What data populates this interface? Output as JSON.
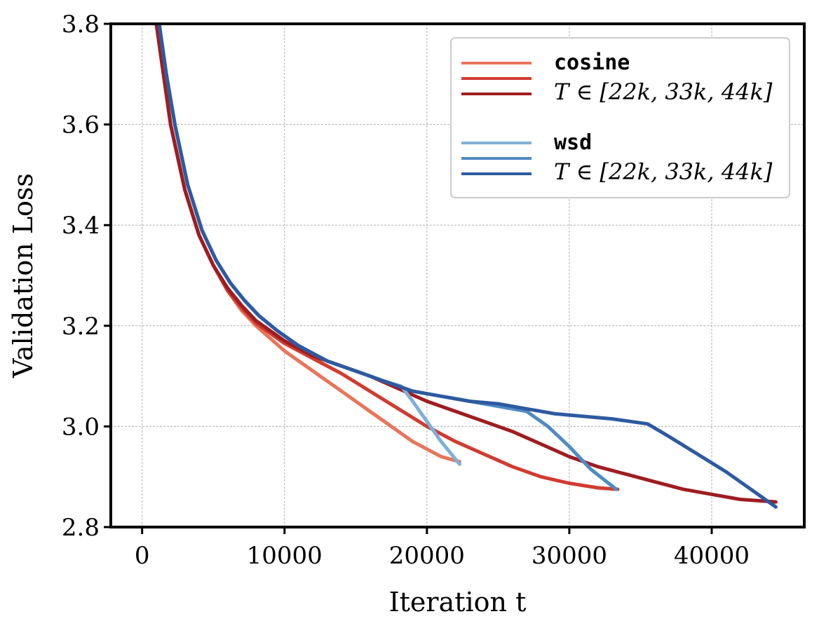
{
  "chart_data": {
    "type": "line",
    "title": "",
    "xlabel": "Iteration t",
    "ylabel": "Validation Loss",
    "xlim": [
      -2200,
      46500
    ],
    "ylim": [
      2.8,
      3.8
    ],
    "xticks": [
      0,
      10000,
      20000,
      30000,
      40000
    ],
    "yticks": [
      2.8,
      3.0,
      3.2,
      3.4,
      3.6,
      3.8
    ],
    "xtick_labels": [
      "0",
      "10000",
      "20000",
      "30000",
      "40000"
    ],
    "ytick_labels": [
      "2.8",
      "3.0",
      "3.2",
      "3.4",
      "3.6",
      "3.8"
    ],
    "grid": true,
    "legend": {
      "placement": "top-right",
      "groups": [
        {
          "name": "cosine",
          "subtitle": "T ∈ [22k, 33k, 44k]"
        },
        {
          "name": "wsd",
          "subtitle": "T ∈ [22k, 33k, 44k]"
        }
      ]
    },
    "series": [
      {
        "group": "cosine",
        "T": 22000,
        "color": "#e8755a",
        "points": [
          [
            1000,
            3.8
          ],
          [
            1500,
            3.7
          ],
          [
            2000,
            3.6
          ],
          [
            3000,
            3.47
          ],
          [
            4000,
            3.38
          ],
          [
            5000,
            3.32
          ],
          [
            6000,
            3.27
          ],
          [
            7000,
            3.23
          ],
          [
            8000,
            3.2
          ],
          [
            9000,
            3.175
          ],
          [
            10000,
            3.15
          ],
          [
            11000,
            3.13
          ],
          [
            12000,
            3.11
          ],
          [
            13000,
            3.09
          ],
          [
            14000,
            3.07
          ],
          [
            15000,
            3.05
          ],
          [
            16000,
            3.03
          ],
          [
            17000,
            3.01
          ],
          [
            18000,
            2.99
          ],
          [
            19000,
            2.97
          ],
          [
            20000,
            2.955
          ],
          [
            21000,
            2.94
          ],
          [
            22300,
            2.93
          ]
        ]
      },
      {
        "group": "cosine",
        "T": 33000,
        "color": "#d13b30",
        "points": [
          [
            1000,
            3.8
          ],
          [
            1500,
            3.7
          ],
          [
            2000,
            3.6
          ],
          [
            3000,
            3.47
          ],
          [
            4000,
            3.38
          ],
          [
            5000,
            3.32
          ],
          [
            6000,
            3.27
          ],
          [
            7000,
            3.235
          ],
          [
            8000,
            3.205
          ],
          [
            10000,
            3.165
          ],
          [
            12000,
            3.135
          ],
          [
            14000,
            3.105
          ],
          [
            16000,
            3.07
          ],
          [
            18000,
            3.035
          ],
          [
            20000,
            3.0
          ],
          [
            22000,
            2.97
          ],
          [
            24000,
            2.945
          ],
          [
            26000,
            2.92
          ],
          [
            28000,
            2.9
          ],
          [
            30000,
            2.887
          ],
          [
            32000,
            2.878
          ],
          [
            33400,
            2.875
          ]
        ]
      },
      {
        "group": "cosine",
        "T": 44000,
        "color": "#9f1c20",
        "points": [
          [
            1000,
            3.8
          ],
          [
            1500,
            3.7
          ],
          [
            2000,
            3.6
          ],
          [
            3000,
            3.47
          ],
          [
            4000,
            3.38
          ],
          [
            5000,
            3.32
          ],
          [
            6000,
            3.275
          ],
          [
            7000,
            3.24
          ],
          [
            8000,
            3.21
          ],
          [
            10000,
            3.17
          ],
          [
            12000,
            3.14
          ],
          [
            14000,
            3.12
          ],
          [
            16000,
            3.1
          ],
          [
            18000,
            3.075
          ],
          [
            20000,
            3.05
          ],
          [
            22000,
            3.03
          ],
          [
            24000,
            3.01
          ],
          [
            26000,
            2.99
          ],
          [
            28000,
            2.965
          ],
          [
            30000,
            2.94
          ],
          [
            32000,
            2.92
          ],
          [
            34000,
            2.905
          ],
          [
            36000,
            2.89
          ],
          [
            38000,
            2.875
          ],
          [
            40000,
            2.865
          ],
          [
            42000,
            2.855
          ],
          [
            44500,
            2.85
          ]
        ]
      },
      {
        "group": "wsd",
        "T": 22000,
        "color": "#7fb0d8",
        "points": [
          [
            1200,
            3.8
          ],
          [
            1700,
            3.7
          ],
          [
            2300,
            3.6
          ],
          [
            3200,
            3.48
          ],
          [
            4200,
            3.39
          ],
          [
            5200,
            3.33
          ],
          [
            6200,
            3.285
          ],
          [
            7200,
            3.25
          ],
          [
            8200,
            3.22
          ],
          [
            9500,
            3.19
          ],
          [
            11000,
            3.16
          ],
          [
            13000,
            3.13
          ],
          [
            15000,
            3.11
          ],
          [
            17000,
            3.09
          ],
          [
            18200,
            3.08
          ],
          [
            19000,
            3.05
          ],
          [
            20000,
            3.01
          ],
          [
            21000,
            2.97
          ],
          [
            22300,
            2.925
          ]
        ]
      },
      {
        "group": "wsd",
        "T": 33000,
        "color": "#4f8bc4",
        "points": [
          [
            1200,
            3.8
          ],
          [
            1700,
            3.7
          ],
          [
            2300,
            3.6
          ],
          [
            3200,
            3.48
          ],
          [
            4200,
            3.39
          ],
          [
            5200,
            3.33
          ],
          [
            6200,
            3.285
          ],
          [
            7200,
            3.25
          ],
          [
            8200,
            3.22
          ],
          [
            9500,
            3.19
          ],
          [
            11000,
            3.16
          ],
          [
            13000,
            3.13
          ],
          [
            15000,
            3.11
          ],
          [
            17000,
            3.09
          ],
          [
            19000,
            3.07
          ],
          [
            21000,
            3.06
          ],
          [
            23000,
            3.05
          ],
          [
            25000,
            3.04
          ],
          [
            27000,
            3.03
          ],
          [
            28500,
            3.0
          ],
          [
            30000,
            2.96
          ],
          [
            31500,
            2.915
          ],
          [
            33300,
            2.875
          ]
        ]
      },
      {
        "group": "wsd",
        "T": 44000,
        "color": "#2d5aa0",
        "points": [
          [
            1200,
            3.8
          ],
          [
            1700,
            3.7
          ],
          [
            2300,
            3.6
          ],
          [
            3200,
            3.48
          ],
          [
            4200,
            3.39
          ],
          [
            5200,
            3.33
          ],
          [
            6200,
            3.285
          ],
          [
            7200,
            3.25
          ],
          [
            8200,
            3.22
          ],
          [
            9500,
            3.19
          ],
          [
            11000,
            3.16
          ],
          [
            13000,
            3.13
          ],
          [
            15000,
            3.11
          ],
          [
            17000,
            3.09
          ],
          [
            19000,
            3.07
          ],
          [
            21000,
            3.06
          ],
          [
            23000,
            3.05
          ],
          [
            25000,
            3.045
          ],
          [
            27000,
            3.035
          ],
          [
            29000,
            3.025
          ],
          [
            31000,
            3.02
          ],
          [
            33000,
            3.015
          ],
          [
            35500,
            3.005
          ],
          [
            37000,
            2.98
          ],
          [
            39000,
            2.945
          ],
          [
            41000,
            2.91
          ],
          [
            43000,
            2.87
          ],
          [
            44500,
            2.84
          ]
        ]
      }
    ]
  }
}
